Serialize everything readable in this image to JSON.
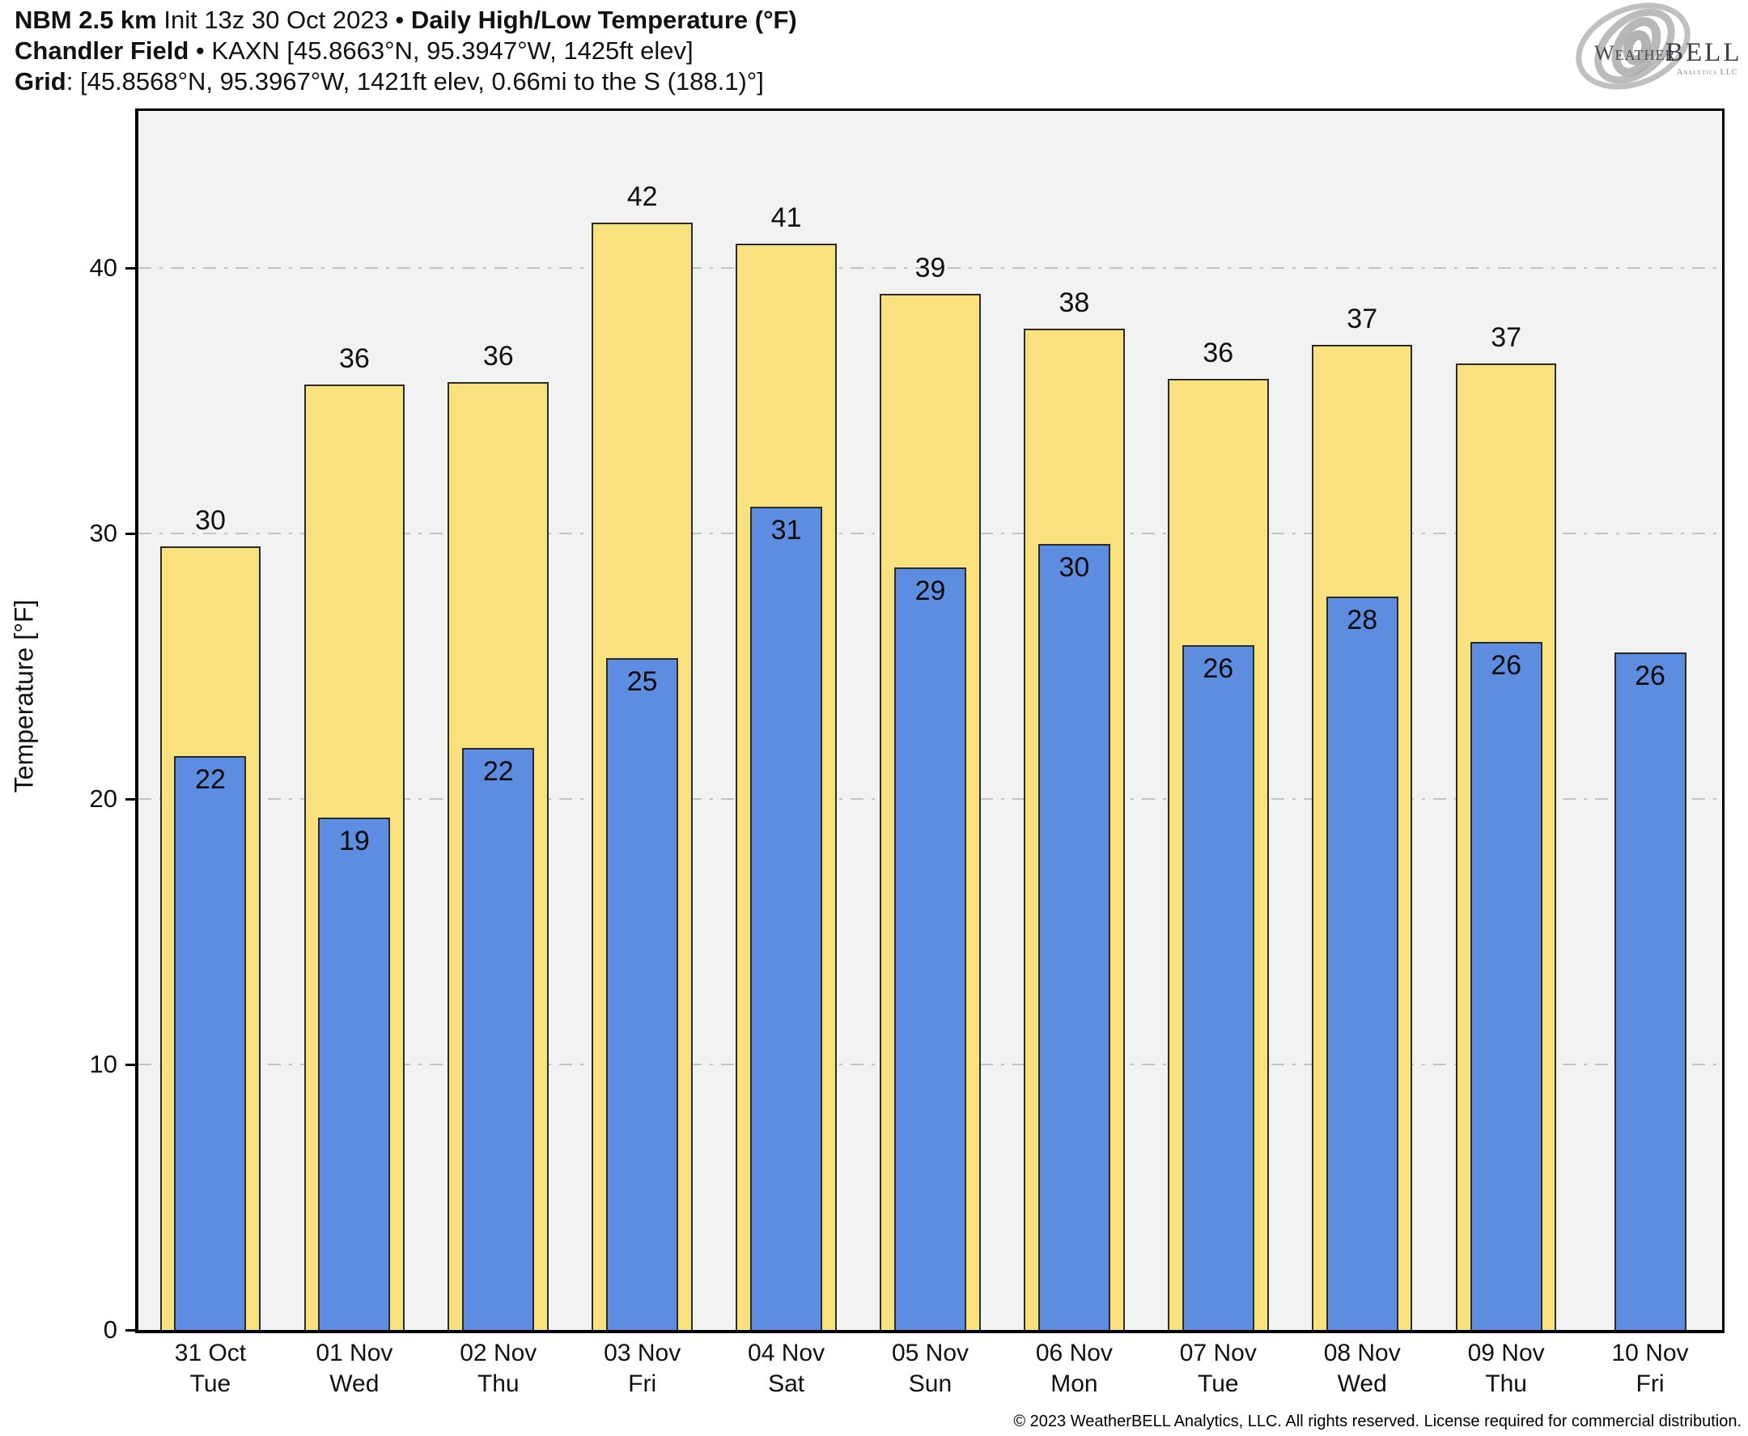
{
  "header": {
    "line1_bold1": "NBM 2.5 km",
    "line1_normal": " Init 13z 30 Oct 2023 • ",
    "line1_bold2": "Daily High/Low Temperature (°F)",
    "line2_bold": "Chandler Field",
    "line2_normal": " • KAXN [45.8663°N, 95.3947°W, 1425ft elev]",
    "line3_bold": "Grid",
    "line3_normal": ": [45.8568°N, 95.3967°W, 1421ft elev, 0.66mi to the S (188.1)°]"
  },
  "logo": {
    "name": "weatherbell-logo",
    "text_weather": "Weather",
    "text_bell": "BELL",
    "text_sub": "Analytics LLC"
  },
  "chart_data": {
    "type": "bar",
    "title": "NBM 2.5 km Init 13z 30 Oct 2023 • Daily High/Low Temperature (°F)",
    "subtitle": "Chandler Field • KAXN [45.8663°N, 95.3947°W, 1425ft elev]",
    "categories": [
      "31 Oct",
      "01 Nov",
      "02 Nov",
      "03 Nov",
      "04 Nov",
      "05 Nov",
      "06 Nov",
      "07 Nov",
      "08 Nov",
      "09 Nov",
      "10 Nov"
    ],
    "weekdays": [
      "Tue",
      "Wed",
      "Thu",
      "Fri",
      "Sat",
      "Sun",
      "Mon",
      "Tue",
      "Wed",
      "Thu",
      "Fri"
    ],
    "series": [
      {
        "name": "Daily High",
        "color": "#f9e17d",
        "labels": [
          30,
          36,
          36,
          42,
          41,
          39,
          38,
          36,
          37,
          37,
          null
        ],
        "plot_values": [
          29.5,
          35.6,
          35.7,
          41.7,
          40.9,
          39.0,
          37.7,
          35.8,
          37.1,
          36.4,
          null
        ]
      },
      {
        "name": "Daily Low",
        "color": "#5c8de0",
        "labels": [
          22,
          19,
          22,
          25,
          31,
          29,
          30,
          26,
          28,
          26,
          26
        ],
        "plot_values": [
          21.6,
          19.3,
          21.9,
          25.3,
          31.0,
          28.7,
          29.6,
          25.8,
          27.6,
          25.9,
          25.5
        ]
      }
    ],
    "xlabel": "",
    "ylabel": "Temperature [°F]",
    "yticks": [
      0,
      10,
      20,
      30,
      40
    ],
    "ylim": [
      0,
      45.9
    ],
    "grid": "horizontal dash-dot gridlines at 10,20,30,40",
    "legend_position": "none",
    "plot_background": "#f2f2f2",
    "gridline_color": "#c2c2c2"
  },
  "footer": {
    "copyright": "© 2023 WeatherBELL Analytics, LLC. All rights reserved. License required for commercial distribution."
  }
}
